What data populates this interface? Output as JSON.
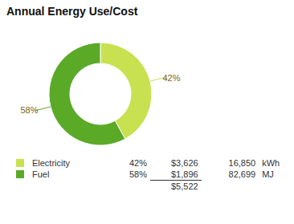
{
  "chart_data": {
    "type": "pie",
    "title": "Annual Energy Use/Cost",
    "categories": [
      "Electricity",
      "Fuel"
    ],
    "values": [
      42,
      58
    ],
    "value_labels": [
      "42%",
      "58%"
    ],
    "colors": [
      "#c8e150",
      "#5aaa28"
    ],
    "data_labels": true,
    "costs": [
      {
        "value": 3626,
        "label": "$3,626"
      },
      {
        "value": 1896,
        "label": "$1,896"
      }
    ],
    "amounts": [
      {
        "value": 16850,
        "label": "16,850"
      },
      {
        "value": 82699,
        "label": "82,699"
      }
    ],
    "units": [
      "kWh",
      "MJ"
    ],
    "total_cost": {
      "value": 5522,
      "label": "$5,522"
    }
  }
}
